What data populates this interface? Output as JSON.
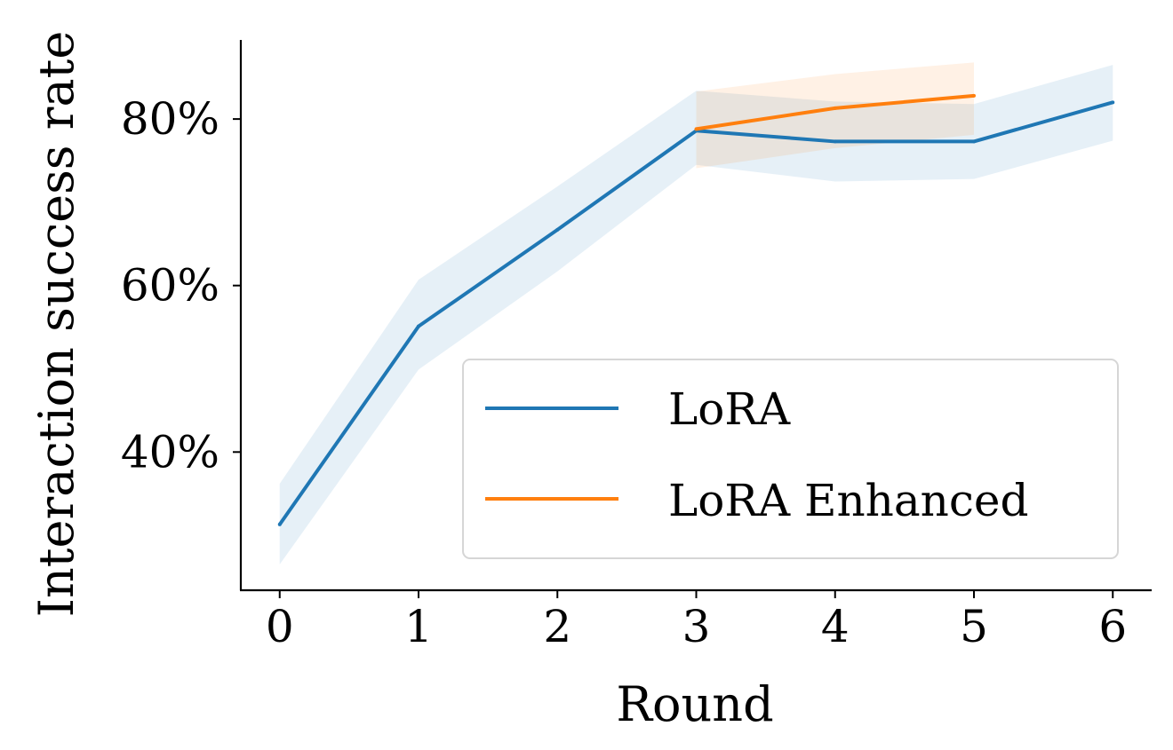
{
  "chart_data": {
    "type": "line",
    "xlabel": "Round",
    "ylabel": "Interaction success rate",
    "x_ticks": [
      "0",
      "1",
      "2",
      "3",
      "4",
      "5",
      "6"
    ],
    "y_ticks": [
      {
        "value": 0.4,
        "label": "40%"
      },
      {
        "value": 0.6,
        "label": "60%"
      },
      {
        "value": 0.8,
        "label": "80%"
      }
    ],
    "xlim": [
      -0.28,
      6.28
    ],
    "ylim": [
      0.234,
      0.895
    ],
    "grid": false,
    "legend_position": "lower-right",
    "series": [
      {
        "name": "LoRA",
        "color": "#1f77b4",
        "band_color": "#1f77b4",
        "x": [
          0,
          1,
          2,
          3,
          4,
          5,
          6
        ],
        "y": [
          0.313,
          0.551,
          0.667,
          0.786,
          0.773,
          0.773,
          0.82
        ],
        "lower": [
          0.265,
          0.499,
          0.617,
          0.745,
          0.725,
          0.728,
          0.774
        ],
        "upper": [
          0.362,
          0.607,
          0.719,
          0.834,
          0.821,
          0.818,
          0.865
        ]
      },
      {
        "name": "LoRA Enhanced",
        "color": "#ff7f0e",
        "band_color": "#ff7f0e",
        "x": [
          3,
          4,
          5
        ],
        "y": [
          0.788,
          0.813,
          0.828
        ],
        "lower": [
          0.741,
          0.765,
          0.781
        ],
        "upper": [
          0.833,
          0.854,
          0.868
        ]
      }
    ]
  }
}
